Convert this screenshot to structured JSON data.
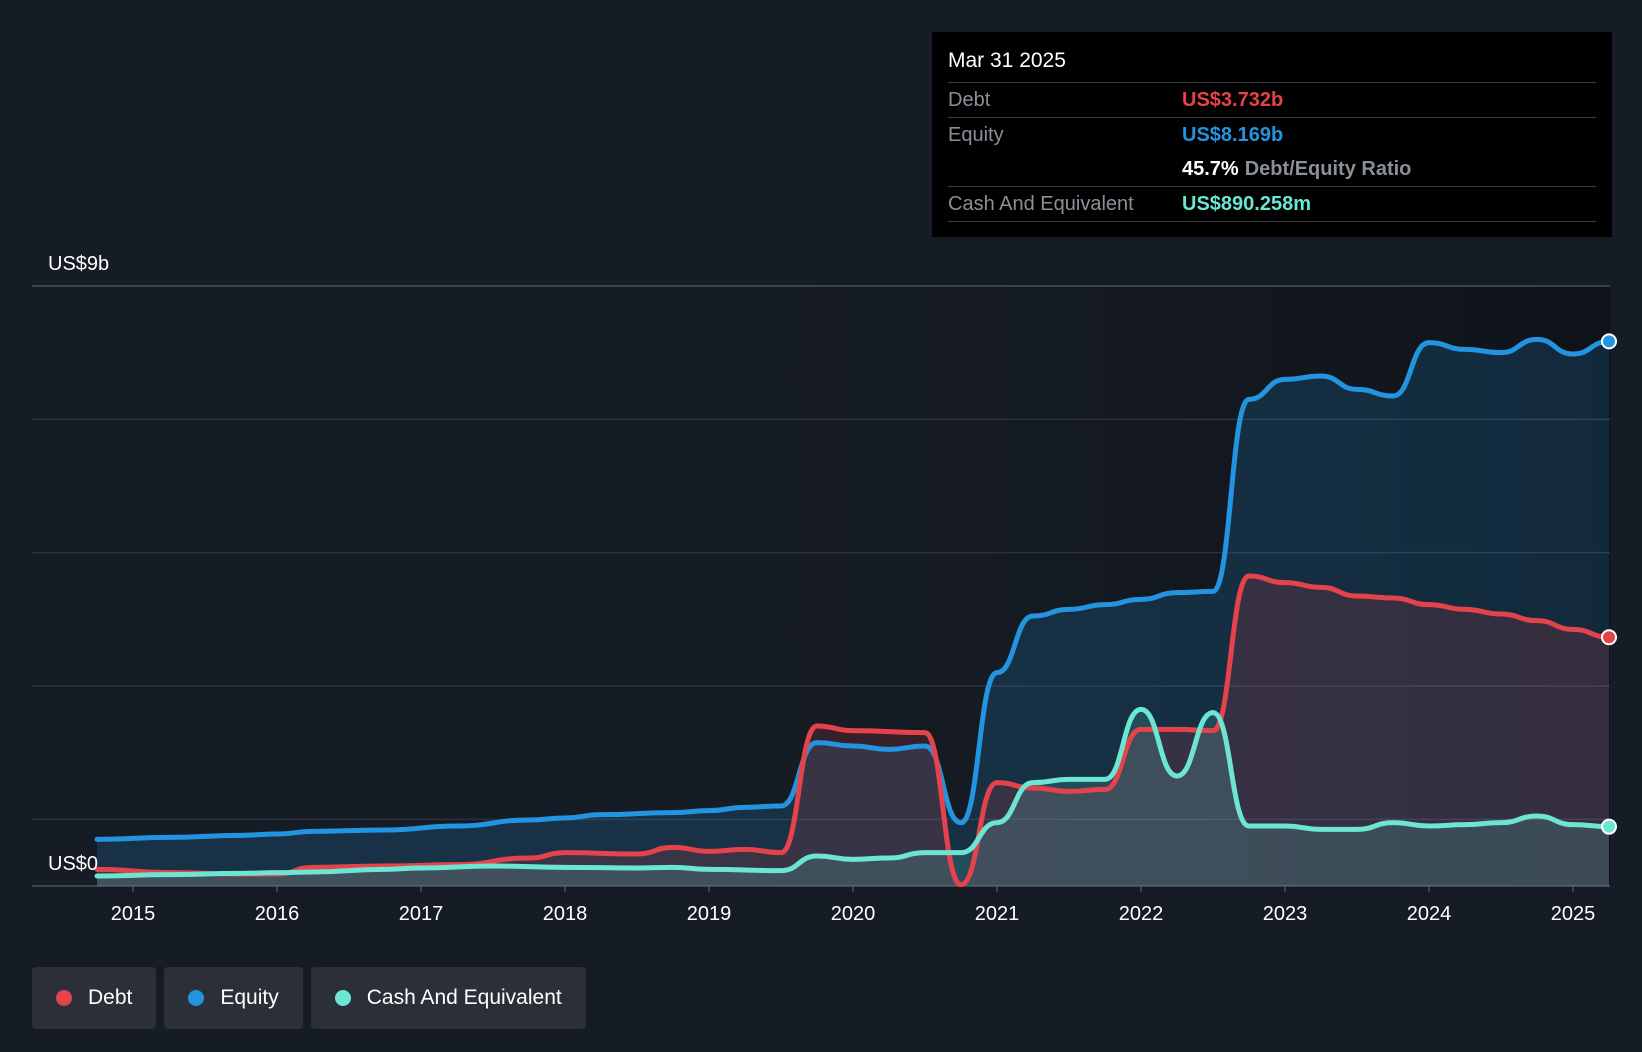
{
  "tooltip": {
    "date": "Mar 31 2025",
    "debt_label": "Debt",
    "debt_value": "US$3.732b",
    "equity_label": "Equity",
    "equity_value": "US$8.169b",
    "ratio_value": "45.7%",
    "ratio_label": "Debt/Equity Ratio",
    "cash_label": "Cash And Equivalent",
    "cash_value": "US$890.258m"
  },
  "legend": [
    {
      "label": "Debt",
      "color": "#e5434c"
    },
    {
      "label": "Equity",
      "color": "#2394df"
    },
    {
      "label": "Cash And Equivalent",
      "color": "#6ce5d2"
    }
  ],
  "chart_data": {
    "type": "area",
    "y_top_label": "US$9b",
    "y_bottom_label": "US$0",
    "ylim": [
      0,
      9
    ],
    "xlim": [
      2014.0,
      2025.25
    ],
    "x_ticks": [
      "2015",
      "2016",
      "2017",
      "2018",
      "2019",
      "2020",
      "2021",
      "2022",
      "2023",
      "2024",
      "2025"
    ],
    "grid": true,
    "series": [
      {
        "name": "Debt",
        "color": "#e5434c",
        "x": [
          2014.75,
          2015.25,
          2015.75,
          2016.0,
          2016.25,
          2016.75,
          2017.25,
          2017.75,
          2018.0,
          2018.5,
          2018.75,
          2019.0,
          2019.25,
          2019.5,
          2019.75,
          2020.0,
          2020.5,
          2020.75,
          2021.0,
          2021.25,
          2021.5,
          2021.75,
          2022.0,
          2022.25,
          2022.5,
          2022.75,
          2023.0,
          2023.25,
          2023.5,
          2023.75,
          2024.0,
          2024.25,
          2024.5,
          2024.75,
          2025.0,
          2025.25
        ],
        "values": [
          0.25,
          0.2,
          0.18,
          0.18,
          0.28,
          0.3,
          0.32,
          0.42,
          0.5,
          0.48,
          0.58,
          0.52,
          0.55,
          0.5,
          2.4,
          2.33,
          2.3,
          0.02,
          1.55,
          1.47,
          1.42,
          1.45,
          2.35,
          2.35,
          2.33,
          4.65,
          4.55,
          4.48,
          4.35,
          4.32,
          4.22,
          4.15,
          4.08,
          3.98,
          3.85,
          3.732
        ]
      },
      {
        "name": "Equity",
        "color": "#2394df",
        "x": [
          2014.75,
          2015.25,
          2015.75,
          2016.0,
          2016.25,
          2016.75,
          2017.25,
          2017.75,
          2018.0,
          2018.25,
          2018.75,
          2019.0,
          2019.25,
          2019.5,
          2019.75,
          2020.0,
          2020.25,
          2020.5,
          2020.75,
          2021.0,
          2021.25,
          2021.5,
          2021.75,
          2022.0,
          2022.25,
          2022.5,
          2022.75,
          2023.0,
          2023.25,
          2023.5,
          2023.75,
          2024.0,
          2024.25,
          2024.5,
          2024.75,
          2025.0,
          2025.25
        ],
        "values": [
          0.7,
          0.73,
          0.76,
          0.78,
          0.82,
          0.84,
          0.9,
          0.99,
          1.02,
          1.07,
          1.1,
          1.13,
          1.18,
          1.2,
          2.15,
          2.1,
          2.05,
          2.1,
          0.95,
          3.2,
          4.05,
          4.15,
          4.22,
          4.3,
          4.4,
          4.42,
          7.3,
          7.6,
          7.65,
          7.45,
          7.35,
          8.15,
          8.05,
          8.0,
          8.2,
          7.98,
          8.169
        ]
      },
      {
        "name": "Cash And Equivalent",
        "color": "#6ce5d2",
        "x": [
          2014.75,
          2015.25,
          2015.75,
          2016.0,
          2016.25,
          2016.75,
          2017.0,
          2017.5,
          2018.0,
          2018.5,
          2018.75,
          2019.0,
          2019.5,
          2019.75,
          2020.0,
          2020.25,
          2020.5,
          2020.75,
          2021.0,
          2021.25,
          2021.5,
          2021.75,
          2022.0,
          2022.25,
          2022.5,
          2022.75,
          2023.0,
          2023.25,
          2023.5,
          2023.75,
          2024.0,
          2024.25,
          2024.5,
          2024.75,
          2025.0,
          2025.25
        ],
        "values": [
          0.15,
          0.17,
          0.19,
          0.2,
          0.21,
          0.25,
          0.27,
          0.3,
          0.28,
          0.27,
          0.28,
          0.25,
          0.23,
          0.45,
          0.4,
          0.42,
          0.5,
          0.5,
          0.95,
          1.55,
          1.6,
          1.6,
          2.65,
          1.65,
          2.6,
          0.9,
          0.9,
          0.85,
          0.85,
          0.95,
          0.9,
          0.92,
          0.95,
          1.05,
          0.92,
          0.89
        ]
      }
    ]
  }
}
